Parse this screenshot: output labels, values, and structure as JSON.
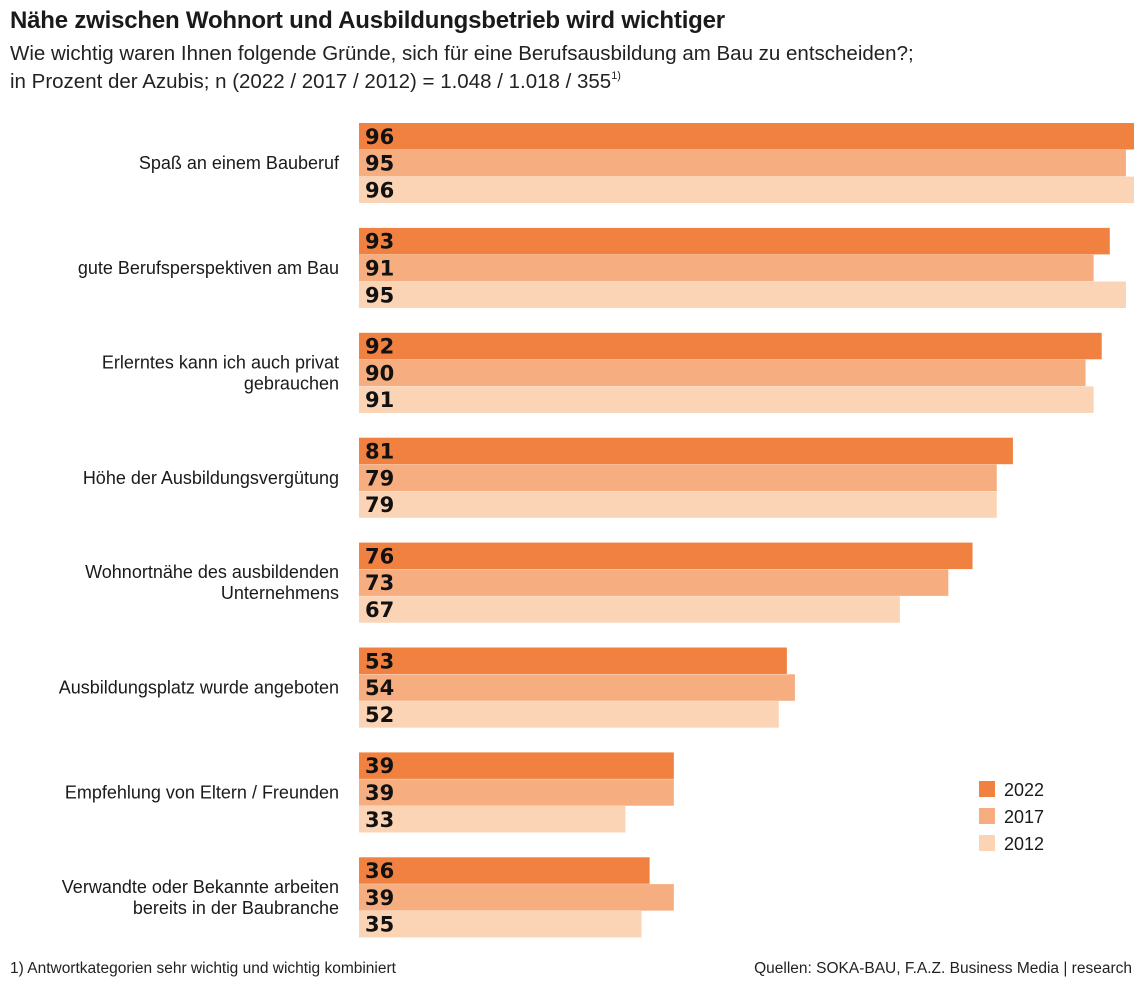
{
  "title": "Nähe zwischen Wohnort und Ausbildungsbetrieb wird wichtiger",
  "subtitle_line1": "Wie wichtig waren Ihnen folgende Gründe, sich für eine Berufsausbildung am Bau zu entscheiden?;",
  "subtitle_line2": "in Prozent der Azubis; n (2022 / 2017 / 2012) = 1.048 / 1.018 / 355",
  "subtitle_footnote_mark": "1)",
  "footnote": "1) Antwortkategorien sehr wichtig und wichtig kombiniert",
  "source": "Quellen: SOKA-BAU, F.A.Z. Business Media | research",
  "colors": {
    "2022": "#f08140",
    "2017": "#f6ae80",
    "2012": "#fbd3b5"
  },
  "chart_data": {
    "type": "bar",
    "orientation": "horizontal",
    "categories": [
      [
        "Spaß an einem Bauberuf"
      ],
      [
        "gute Berufsperspektiven am Bau"
      ],
      [
        "Erlerntes kann ich auch privat",
        "gebrauchen"
      ],
      [
        "Höhe der Ausbildungsvergütung"
      ],
      [
        "Wohnortnähe des ausbildenden",
        "Unternehmens"
      ],
      [
        "Ausbildungsplatz wurde angeboten"
      ],
      [
        "Empfehlung von Eltern / Freunden"
      ],
      [
        "Verwandte oder Bekannte arbeiten",
        "bereits in der Baubranche"
      ]
    ],
    "series": [
      {
        "name": "2022",
        "values": [
          96,
          93,
          92,
          81,
          76,
          53,
          39,
          36
        ]
      },
      {
        "name": "2017",
        "values": [
          95,
          91,
          90,
          79,
          73,
          54,
          39,
          39
        ]
      },
      {
        "name": "2012",
        "values": [
          96,
          95,
          91,
          79,
          67,
          52,
          33,
          35
        ]
      }
    ],
    "xlim": [
      0,
      96
    ],
    "legend_position": "bottom-right"
  }
}
